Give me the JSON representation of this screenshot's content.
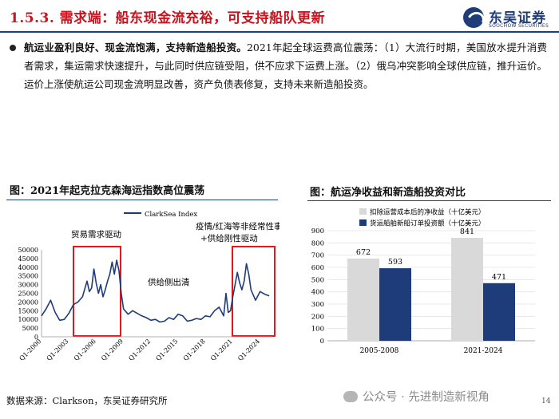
{
  "header": {
    "title": "1.5.3. 需求端：船东现金流充裕，可支持船队更新",
    "logo_cn": "东吴证券",
    "logo_en": "SOOCHOW SECURITIES"
  },
  "body": {
    "bold_lead": "航运业盈利良好、现金流饱满，支持新造船投资。",
    "text": "2021年起全球运费高位震荡：（1）大流行时期，美国放水提升消费者需求，集运需求快速提升，与此同时供应链受阻，供不应求下运费上涨。（2）俄乌冲突影响全球供应链，推升运价。运价上涨使航运公司现金流明显改善，资产负债表修复，支持未来新造船投资。"
  },
  "left_figure": {
    "title": "图：2021年起克拉克森海运指数高位震荡",
    "annotations": {
      "trade": "贸易需求驱动",
      "supply": "供给侧出清",
      "covid_line1": "疫情/红海等非经常性事件",
      "covid_line2": "+供给刚性驱动"
    }
  },
  "right_figure": {
    "title": "图：航运净收益和新造船投资对比"
  },
  "footer": {
    "source": "数据来源：Clarkson，东吴证券研究所",
    "watermark": "公众号 · 先进制造新视角",
    "page": "14"
  },
  "chart_data": [
    {
      "type": "line",
      "legend": [
        "ClarkSea Index"
      ],
      "legend_position": "top",
      "ylim": [
        0,
        50000
      ],
      "yticks": [
        0,
        5000,
        10000,
        15000,
        20000,
        25000,
        30000,
        35000,
        40000,
        45000,
        50000
      ],
      "xticks": [
        "Q1-2000",
        "Q1-2003",
        "Q1-2006",
        "Q1-2009",
        "Q1-2012",
        "Q1-2015",
        "Q1-2018",
        "Q1-2021",
        "Q1-2024"
      ],
      "color": "#1f3c7a",
      "grid": false,
      "series": [
        {
          "name": "ClarkSea Index",
          "x": [
            2000.0,
            2000.5,
            2001.0,
            2001.5,
            2002.0,
            2002.5,
            2003.0,
            2003.5,
            2004.0,
            2004.5,
            2005.0,
            2005.25,
            2005.5,
            2005.75,
            2006.0,
            2006.25,
            2006.5,
            2006.75,
            2007.0,
            2007.25,
            2007.5,
            2007.75,
            2008.0,
            2008.25,
            2008.5,
            2008.75,
            2009.0,
            2009.5,
            2010.0,
            2010.5,
            2011.0,
            2011.5,
            2012.0,
            2012.5,
            2013.0,
            2013.5,
            2014.0,
            2014.5,
            2015.0,
            2015.5,
            2016.0,
            2016.5,
            2017.0,
            2017.5,
            2018.0,
            2018.5,
            2019.0,
            2019.5,
            2020.0,
            2020.25,
            2020.5,
            2020.75,
            2021.0,
            2021.25,
            2021.5,
            2021.75,
            2022.0,
            2022.25,
            2022.5,
            2022.75,
            2023.0,
            2023.5,
            2024.0,
            2024.5,
            2025.0
          ],
          "y": [
            12000,
            16000,
            21000,
            14000,
            9500,
            10000,
            13500,
            18500,
            20000,
            23000,
            32000,
            26000,
            28000,
            39000,
            31000,
            25000,
            30000,
            23000,
            27000,
            32000,
            36000,
            43000,
            36000,
            44000,
            38000,
            25000,
            16000,
            13000,
            15000,
            13500,
            12000,
            11000,
            9500,
            10000,
            8500,
            9000,
            11000,
            10000,
            13000,
            12000,
            9000,
            9500,
            10500,
            10000,
            12000,
            11500,
            15000,
            17000,
            12000,
            25000,
            14000,
            15000,
            23000,
            30000,
            37000,
            31000,
            27000,
            32000,
            42000,
            36000,
            27000,
            21000,
            26000,
            24500,
            23500
          ]
        }
      ]
    },
    {
      "type": "bar",
      "categories": [
        "2005-2008",
        "2021-2024"
      ],
      "ylim": [
        0,
        900
      ],
      "yticks": [
        0,
        100,
        200,
        300,
        400,
        500,
        600,
        700,
        800,
        900
      ],
      "legend_position": "top",
      "grid": true,
      "series": [
        {
          "name": "扣除运营成本后的净收益（十亿美元）",
          "values": [
            672,
            841
          ],
          "color": "#d9d9d9"
        },
        {
          "name": "货运船舶新船订单投资额（十亿美元）",
          "values": [
            593,
            471
          ],
          "color": "#1f3c7a"
        }
      ]
    }
  ]
}
